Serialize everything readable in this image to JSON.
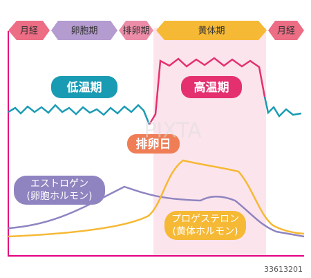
{
  "phases": [
    "月経",
    "卵胞期",
    "排卵期",
    "黄体期",
    "月経"
  ],
  "low_temp": "低温期",
  "high_temp": "高温期",
  "ovulation_day": "排卵日",
  "estrogen": {
    "line1": "エストロゲン",
    "line2": "(卵胞ホルモン)"
  },
  "progesterone": {
    "line1": "プロゲステロン",
    "line2": "(黄体ホルモン)"
  },
  "watermark": "PIXTA",
  "image_id": "33613201"
}
